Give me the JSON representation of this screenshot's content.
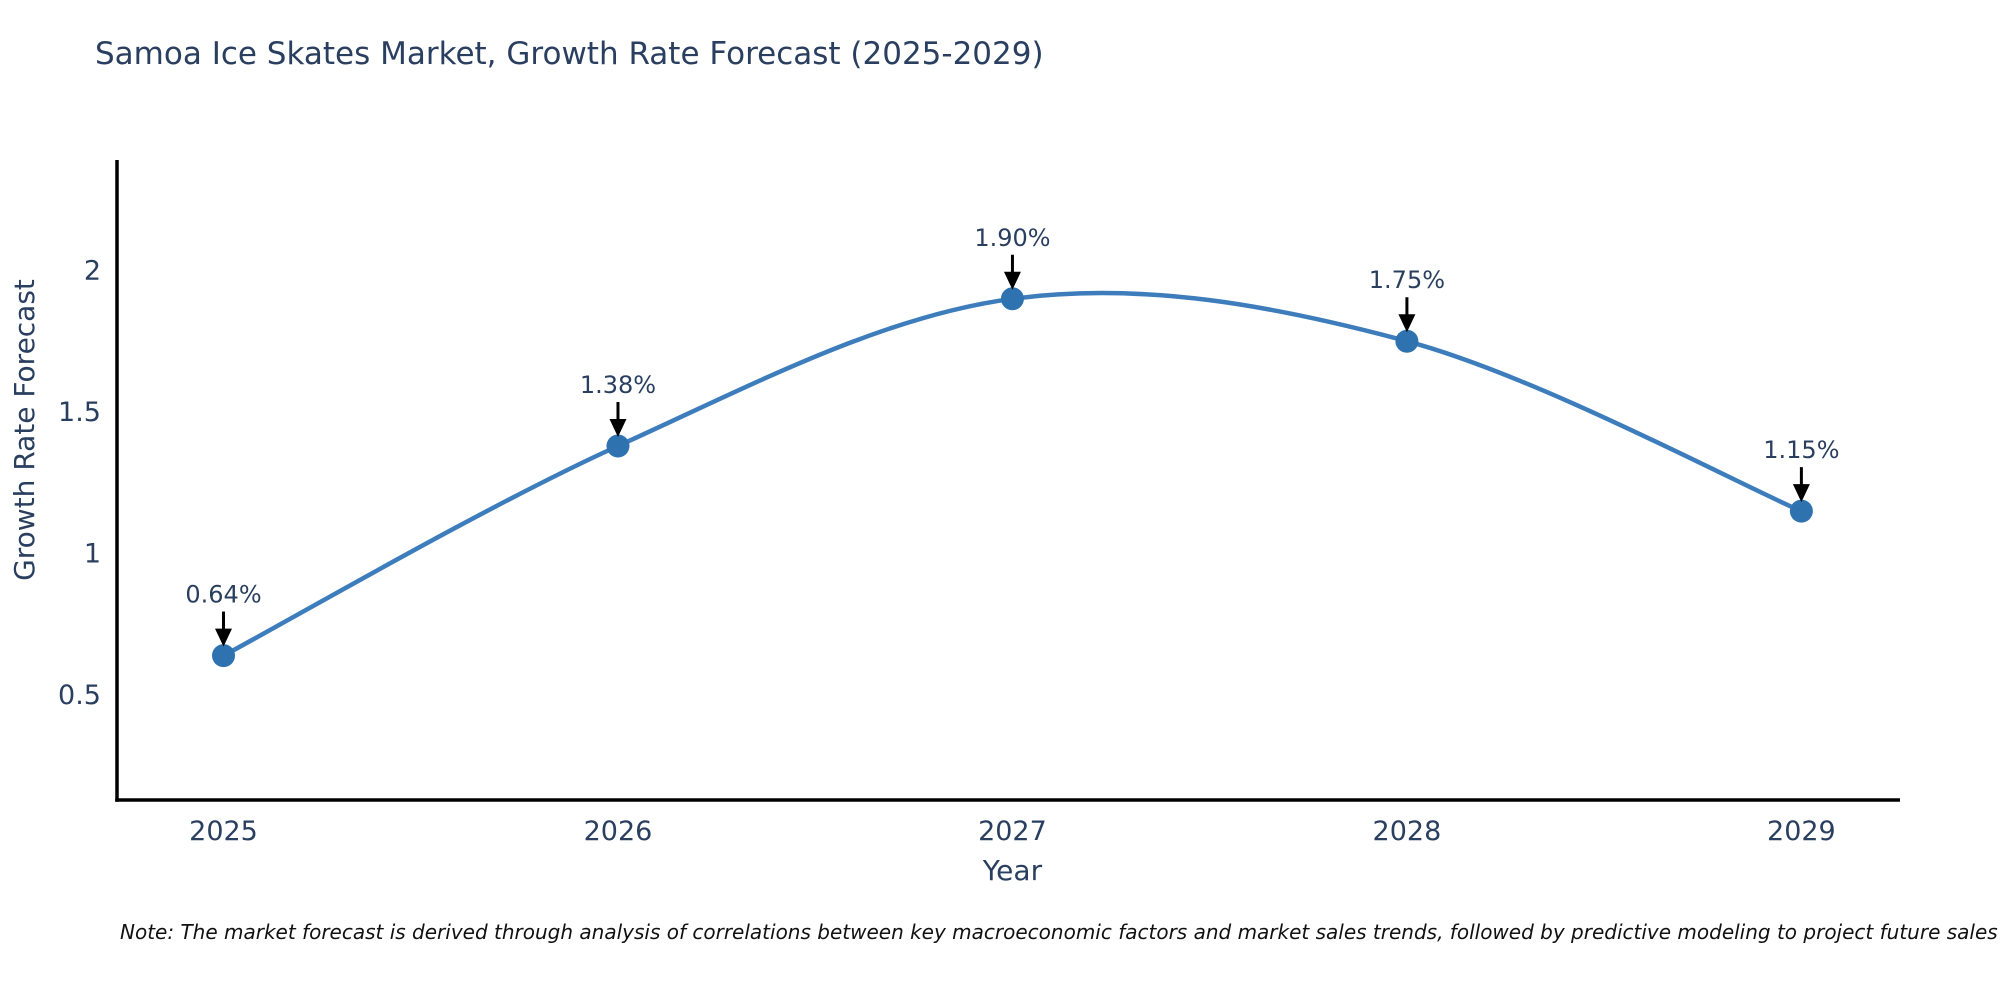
{
  "note": "Note: The market forecast is derived through analysis of correlations between key macroeconomic factors and market sales trends, followed by predictive modeling to project future sales",
  "chart_data": {
    "type": "line",
    "title": "Samoa Ice Skates Market, Growth Rate Forecast (2025-2029)",
    "xlabel": "Year",
    "ylabel": "Growth Rate Forecast",
    "x": [
      2025,
      2026,
      2027,
      2028,
      2029
    ],
    "values": [
      0.64,
      1.38,
      1.9,
      1.75,
      1.15
    ],
    "point_labels": [
      "0.64%",
      "1.38%",
      "1.90%",
      "1.75%",
      "1.15%"
    ],
    "xtick_labels": [
      "2025",
      "2026",
      "2027",
      "2028",
      "2029"
    ],
    "yticks": [
      0.5,
      1.0,
      1.5,
      2.0
    ],
    "ytick_labels": [
      "0.5",
      "1",
      "1.5",
      "2"
    ],
    "xlim": [
      2024.73,
      2029.25
    ],
    "ylim": [
      0.13,
      2.39
    ],
    "grid": false,
    "legend": "none",
    "curve": "spline",
    "line_color": "#3d7dbc",
    "marker_color": "#2f72b0",
    "axis_color": "#000000",
    "text_color": "#2a3f5f",
    "annotation_color": "#2a3f5f",
    "arrow_color": "#000000"
  }
}
